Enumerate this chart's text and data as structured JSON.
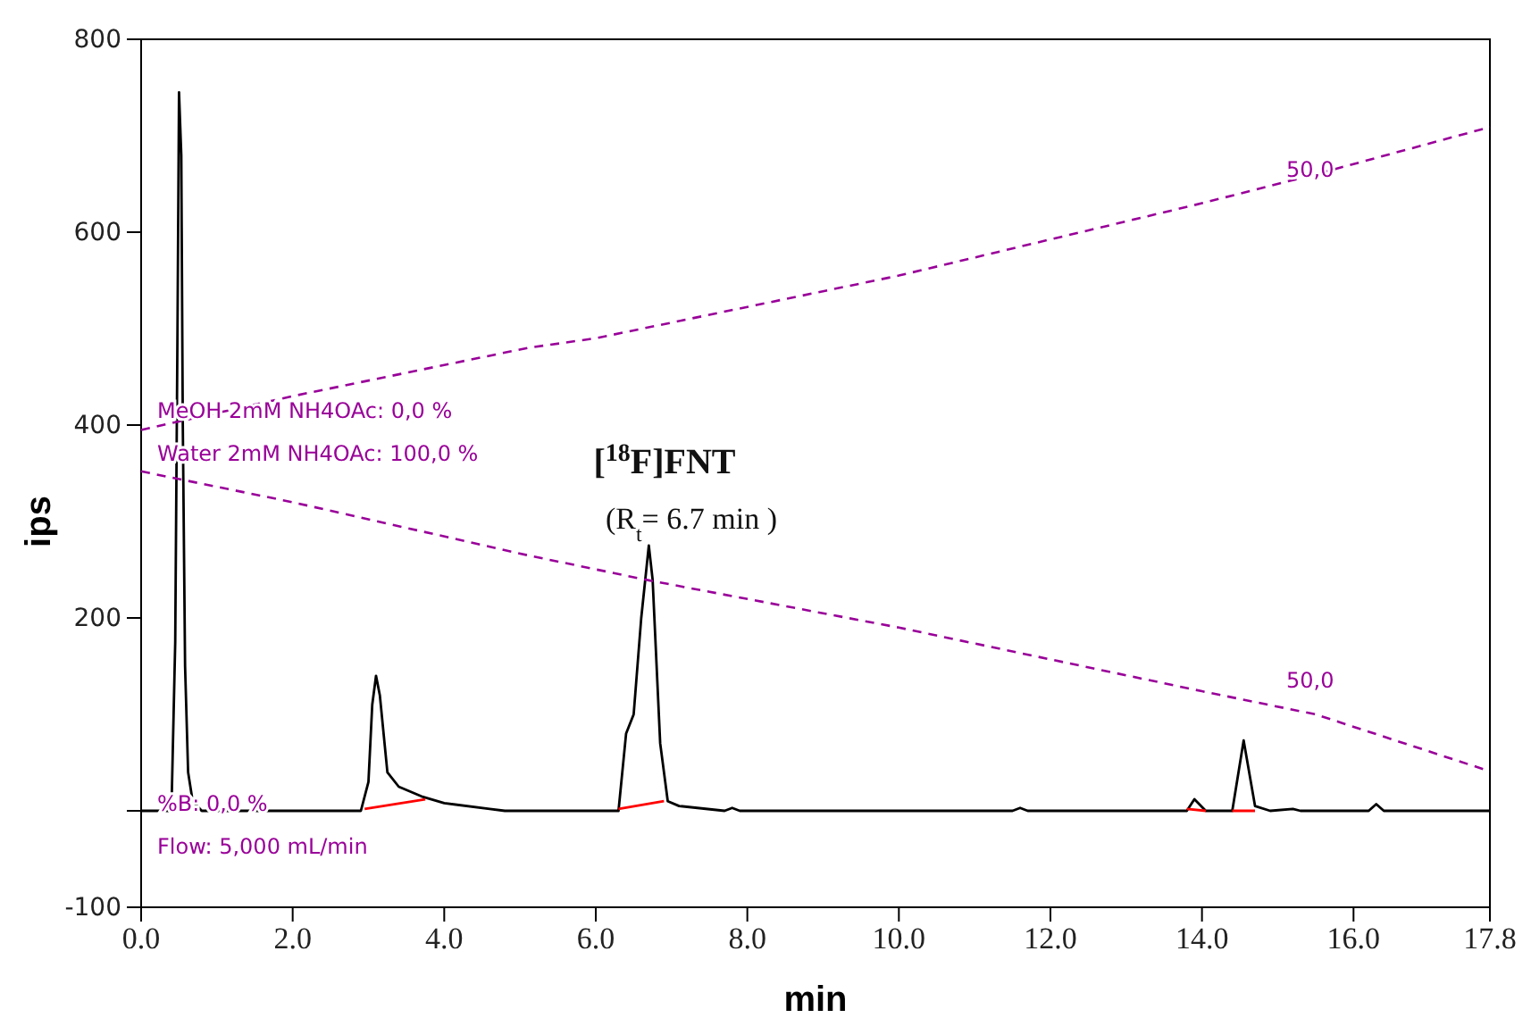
{
  "chart_data": {
    "type": "line",
    "xlabel": "min",
    "ylabel": "ips",
    "xlim": [
      0,
      17.8
    ],
    "ylim": [
      -100,
      800
    ],
    "xticks": [
      {
        "value": 0,
        "label": "0.0"
      },
      {
        "value": 2,
        "label": "2.0"
      },
      {
        "value": 4,
        "label": "4.0"
      },
      {
        "value": 6,
        "label": "6.0"
      },
      {
        "value": 8,
        "label": "8.0"
      },
      {
        "value": 10,
        "label": "10.0"
      },
      {
        "value": 12,
        "label": "12.0"
      },
      {
        "value": 14,
        "label": "14.0"
      },
      {
        "value": 16,
        "label": "16.0"
      },
      {
        "value": 17.8,
        "label": "17.8"
      }
    ],
    "yticks": [
      -100,
      {
        "value": 0,
        "label": null
      },
      200,
      400,
      600,
      800
    ],
    "grid": false,
    "marker": "none",
    "series": [
      {
        "color": "#000000",
        "line_style": "solid",
        "x": [
          0,
          0.4,
          0.45,
          0.48,
          0.5,
          0.53,
          0.55,
          0.58,
          0.62,
          0.68,
          0.8,
          2.9,
          3.0,
          3.05,
          3.1,
          3.15,
          3.25,
          3.4,
          3.7,
          4.0,
          4.6,
          4.8,
          6.3,
          6.4,
          6.5,
          6.6,
          6.7,
          6.75,
          6.85,
          6.95,
          7.1,
          7.7,
          7.8,
          7.9,
          11.5,
          11.6,
          11.7,
          13.8,
          13.9,
          14.05,
          14.4,
          14.55,
          14.7,
          14.9,
          15.2,
          15.3,
          16.2,
          16.3,
          16.4,
          17.8
        ],
        "values": [
          0,
          0,
          175,
          500,
          745,
          680,
          400,
          150,
          40,
          10,
          0,
          0,
          30,
          110,
          140,
          120,
          40,
          25,
          15,
          8,
          2,
          0,
          0,
          80,
          100,
          200,
          275,
          240,
          70,
          10,
          5,
          0,
          3,
          0,
          0,
          3,
          0,
          0,
          12,
          0,
          0,
          73,
          5,
          0,
          2,
          0,
          0,
          7,
          0,
          0
        ]
      },
      {
        "color": "#ff0000",
        "line_style": "solid",
        "x": [
          2.95,
          3.75,
          3.76,
          6.3,
          6.9,
          6.91,
          13.8,
          14.05,
          14.06,
          14.4,
          14.7
        ],
        "values": [
          2,
          12,
          null,
          2,
          10,
          null,
          2,
          0,
          null,
          0,
          0
        ]
      },
      {
        "color": "#990099",
        "line_style": "dashed",
        "x": [
          0,
          2,
          5.1,
          6,
          10,
          14,
          15.5,
          17.8
        ],
        "values": [
          395,
          430,
          480,
          490,
          555,
          630,
          660,
          709
        ]
      },
      {
        "color": "#990099",
        "line_style": "dashed",
        "x": [
          0,
          2,
          5.1,
          6.7,
          10,
          14,
          15.5,
          17.8
        ],
        "values": [
          352,
          320,
          265,
          239,
          190,
          124,
          100,
          41
        ]
      }
    ],
    "annotations": [
      "[$^{18}$F]FNT",
      "(R$_{t}$= 6.7 min )",
      "MeOH 2mM NH4OAc: 0,0 %",
      "Water 2mM NH4OAc: 100,0 %",
      "%B: 0,0 %",
      "Flow: 5,000 mL/min",
      "50,0",
      "50,0"
    ]
  }
}
